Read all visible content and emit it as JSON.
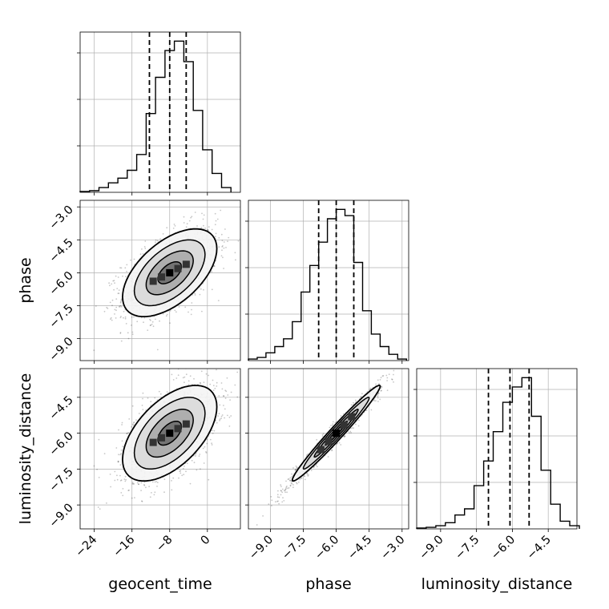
{
  "chart_data": {
    "type": "corner",
    "parameters": [
      "geocent_time",
      "phase",
      "luminosity_distance"
    ],
    "axes": {
      "geocent_time": {
        "lim": [
          -27,
          7
        ],
        "ticks": [
          -24,
          -16,
          -8,
          0
        ],
        "tick_labels": [
          "−24",
          "−16",
          "−8",
          "0"
        ]
      },
      "phase": {
        "lim": [
          -10.0,
          -2.7
        ],
        "ticks": [
          -9.0,
          -7.5,
          -6.0,
          -4.5,
          -3.0
        ],
        "tick_labels": [
          "−9.0",
          "−7.5",
          "−6.0",
          "−4.5",
          "−3.0"
        ]
      },
      "luminosity_distance": {
        "lim": [
          -10.0,
          -3.3
        ],
        "ticks": [
          -9.0,
          -7.5,
          -6.0,
          -4.5
        ],
        "tick_labels": [
          "−9.0",
          "−7.5",
          "−6.0",
          "−4.5"
        ]
      }
    },
    "marginals": [
      {
        "parameter": "geocent_time",
        "bin_edges": [
          -27,
          -25,
          -23,
          -21,
          -19,
          -17,
          -15,
          -13,
          -11,
          -9,
          -7,
          -5,
          -3,
          -1,
          1,
          3,
          5
        ],
        "counts": [
          0.5,
          1,
          3,
          6,
          9,
          14,
          24,
          50,
          73,
          90,
          96,
          83,
          52,
          27,
          12,
          3
        ],
        "quantiles": [
          -12.3,
          -8.0,
          -4.5
        ]
      },
      {
        "parameter": "phase",
        "bin_edges": [
          -10.0,
          -9.6,
          -9.2,
          -8.8,
          -8.4,
          -8.0,
          -7.6,
          -7.2,
          -6.8,
          -6.4,
          -6.0,
          -5.6,
          -5.2,
          -4.8,
          -4.4,
          -4.0,
          -3.6,
          -3.2,
          -2.8
        ],
        "counts": [
          1,
          2,
          5,
          9,
          14,
          25,
          44,
          61,
          76,
          91,
          97,
          93,
          63,
          32,
          17,
          9,
          4,
          1
        ],
        "quantiles": [
          -6.8,
          -6.0,
          -5.2
        ]
      },
      {
        "parameter": "luminosity_distance",
        "bin_edges": [
          -10.0,
          -9.6,
          -9.2,
          -8.8,
          -8.4,
          -8.0,
          -7.6,
          -7.2,
          -6.8,
          -6.4,
          -6.0,
          -5.6,
          -5.2,
          -4.8,
          -4.4,
          -4.0,
          -3.6,
          -3.2
        ],
        "counts": [
          0.5,
          1,
          2,
          4,
          9,
          13,
          28,
          44,
          63,
          82,
          92,
          98,
          73,
          38,
          16,
          5,
          2
        ],
        "quantiles": [
          -7.0,
          -6.1,
          -5.3
        ]
      }
    ],
    "joints": [
      {
        "x": "geocent_time",
        "y": "phase",
        "mean": [
          -8.0,
          -6.0
        ],
        "std": [
          5.0,
          1.0
        ],
        "corr": 0.55
      },
      {
        "x": "geocent_time",
        "y": "luminosity_distance",
        "mean": [
          -8.0,
          -6.0
        ],
        "std": [
          5.0,
          1.0
        ],
        "corr": 0.55
      },
      {
        "x": "phase",
        "y": "luminosity_distance",
        "mean": [
          -6.0,
          -6.0
        ],
        "std": [
          1.0,
          1.0
        ],
        "corr": 0.98
      }
    ],
    "contour_levels_sigma": [
      0.5,
      1.0,
      1.5,
      2.0
    ],
    "grid": true,
    "colors": {
      "hist": "#000000",
      "quantile": "#000000",
      "contour": "#000000",
      "grid": "#b0b0b0",
      "points": "#000000"
    }
  }
}
